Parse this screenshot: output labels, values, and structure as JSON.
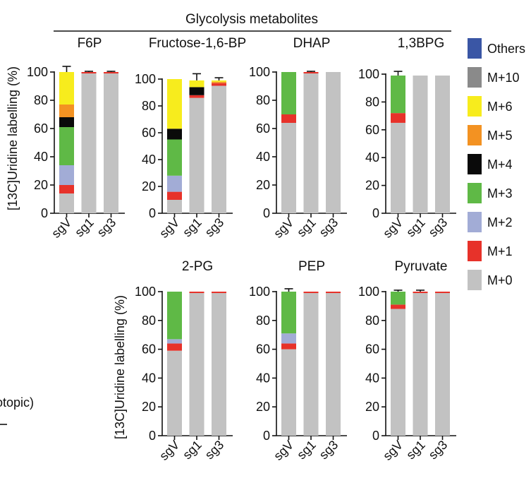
{
  "header": {
    "title": "Glycolysis metabolites"
  },
  "y_axis_label": "[13C]Uridine labelling (%)",
  "partial_text": {
    "otopic": "otopic)"
  },
  "chart_data": {
    "type": "bar",
    "stacked": true,
    "categories": [
      "sgV",
      "sg1",
      "sg3"
    ],
    "yticks": [
      0,
      20,
      40,
      60,
      80,
      100
    ],
    "legend": [
      {
        "name": "Others",
        "color": "#3a56a5"
      },
      {
        "name": "M+10",
        "color": "#8a8a8a"
      },
      {
        "name": "M+6",
        "color": "#f7ec1d"
      },
      {
        "name": "M+5",
        "color": "#f39222"
      },
      {
        "name": "M+4",
        "color": "#0a0a0a"
      },
      {
        "name": "M+3",
        "color": "#5fb946"
      },
      {
        "name": "M+2",
        "color": "#a2acd6"
      },
      {
        "name": "M+1",
        "color": "#e7322a"
      },
      {
        "name": "M+0",
        "color": "#c2c2c2"
      }
    ],
    "panels": [
      {
        "title": "F6P",
        "ylim": [
          0,
          100
        ],
        "bars": [
          {
            "category": "sgV",
            "stack": [
              {
                "iso": "M+0",
                "value": 14,
                "err": 0
              },
              {
                "iso": "M+1",
                "value": 6,
                "err": 2
              },
              {
                "iso": "M+2",
                "value": 14,
                "err": 0
              },
              {
                "iso": "M+3",
                "value": 27,
                "err": 0
              },
              {
                "iso": "M+4",
                "value": 7,
                "err": 0
              },
              {
                "iso": "M+5",
                "value": 9,
                "err": 0
              },
              {
                "iso": "M+6",
                "value": 23,
                "err": 4
              }
            ]
          },
          {
            "category": "sg1",
            "stack": [
              {
                "iso": "M+0",
                "value": 99,
                "err": 0
              },
              {
                "iso": "M+1",
                "value": 1,
                "err": 0.5
              }
            ]
          },
          {
            "category": "sg3",
            "stack": [
              {
                "iso": "M+0",
                "value": 99,
                "err": 0
              },
              {
                "iso": "M+1",
                "value": 1,
                "err": 0.5
              }
            ]
          }
        ]
      },
      {
        "title": "Fructose-1,6-BP",
        "ylim": [
          0,
          100
        ],
        "bars": [
          {
            "category": "sgV",
            "stack": [
              {
                "iso": "M+0",
                "value": 10,
                "err": 0
              },
              {
                "iso": "M+1",
                "value": 6,
                "err": 0
              },
              {
                "iso": "M+2",
                "value": 12,
                "err": 0
              },
              {
                "iso": "M+3",
                "value": 27,
                "err": 0
              },
              {
                "iso": "M+4",
                "value": 8,
                "err": 0
              },
              {
                "iso": "M+6",
                "value": 37,
                "err": 0
              }
            ]
          },
          {
            "category": "sg1",
            "stack": [
              {
                "iso": "M+0",
                "value": 86,
                "err": 0
              },
              {
                "iso": "M+1",
                "value": 2,
                "err": 0
              },
              {
                "iso": "M+4",
                "value": 6,
                "err": 0
              },
              {
                "iso": "M+6",
                "value": 5,
                "err": 5
              }
            ]
          },
          {
            "category": "sg3",
            "stack": [
              {
                "iso": "M+0",
                "value": 95,
                "err": 0
              },
              {
                "iso": "M+1",
                "value": 2,
                "err": 0
              },
              {
                "iso": "M+5",
                "value": 1,
                "err": 0
              },
              {
                "iso": "M+6",
                "value": 1,
                "err": 2
              }
            ]
          }
        ]
      },
      {
        "title": "DHAP",
        "ylim": [
          0,
          100
        ],
        "bars": [
          {
            "category": "sgV",
            "stack": [
              {
                "iso": "M+0",
                "value": 64,
                "err": 0
              },
              {
                "iso": "M+1",
                "value": 6,
                "err": 0
              },
              {
                "iso": "M+3",
                "value": 30,
                "err": 0
              }
            ]
          },
          {
            "category": "sg1",
            "stack": [
              {
                "iso": "M+0",
                "value": 99,
                "err": 0
              },
              {
                "iso": "M+1",
                "value": 1,
                "err": 0.5
              }
            ]
          },
          {
            "category": "sg3",
            "stack": [
              {
                "iso": "M+0",
                "value": 100,
                "err": 0
              }
            ]
          }
        ]
      },
      {
        "title": "1,3BPG",
        "ylim": [
          0,
          100
        ],
        "bars": [
          {
            "category": "sgV",
            "stack": [
              {
                "iso": "M+0",
                "value": 65,
                "err": 0
              },
              {
                "iso": "M+1",
                "value": 7,
                "err": 0
              },
              {
                "iso": "M+3",
                "value": 27,
                "err": 3
              }
            ]
          },
          {
            "category": "sg1",
            "stack": [
              {
                "iso": "M+0",
                "value": 99,
                "err": 0
              }
            ]
          },
          {
            "category": "sg3",
            "stack": [
              {
                "iso": "M+0",
                "value": 99,
                "err": 0
              }
            ]
          }
        ]
      },
      {
        "title": "2-PG",
        "ylim": [
          0,
          100
        ],
        "bars": [
          {
            "category": "sgV",
            "stack": [
              {
                "iso": "M+0",
                "value": 59,
                "err": 0
              },
              {
                "iso": "M+1",
                "value": 5,
                "err": 0
              },
              {
                "iso": "M+2",
                "value": 3,
                "err": 0
              },
              {
                "iso": "M+3",
                "value": 33,
                "err": 0
              }
            ]
          },
          {
            "category": "sg1",
            "stack": [
              {
                "iso": "M+0",
                "value": 99,
                "err": 0
              },
              {
                "iso": "M+1",
                "value": 1,
                "err": 0
              }
            ]
          },
          {
            "category": "sg3",
            "stack": [
              {
                "iso": "M+0",
                "value": 99,
                "err": 0
              },
              {
                "iso": "M+1",
                "value": 1,
                "err": 0
              }
            ]
          }
        ]
      },
      {
        "title": "PEP",
        "ylim": [
          0,
          100
        ],
        "bars": [
          {
            "category": "sgV",
            "stack": [
              {
                "iso": "M+0",
                "value": 60,
                "err": 0
              },
              {
                "iso": "M+1",
                "value": 4,
                "err": 0
              },
              {
                "iso": "M+2",
                "value": 7,
                "err": 0
              },
              {
                "iso": "M+3",
                "value": 29,
                "err": 2
              }
            ]
          },
          {
            "category": "sg1",
            "stack": [
              {
                "iso": "M+0",
                "value": 99,
                "err": 0
              },
              {
                "iso": "M+1",
                "value": 1,
                "err": 0
              }
            ]
          },
          {
            "category": "sg3",
            "stack": [
              {
                "iso": "M+0",
                "value": 99,
                "err": 0
              },
              {
                "iso": "M+1",
                "value": 1,
                "err": 0
              }
            ]
          }
        ]
      },
      {
        "title": "Pyruvate",
        "ylim": [
          0,
          100
        ],
        "bars": [
          {
            "category": "sgV",
            "stack": [
              {
                "iso": "M+0",
                "value": 88,
                "err": 0
              },
              {
                "iso": "M+1",
                "value": 3,
                "err": 0
              },
              {
                "iso": "M+3",
                "value": 9,
                "err": 1
              }
            ]
          },
          {
            "category": "sg1",
            "stack": [
              {
                "iso": "M+0",
                "value": 99,
                "err": 0
              },
              {
                "iso": "M+1",
                "value": 1,
                "err": 1
              }
            ]
          },
          {
            "category": "sg3",
            "stack": [
              {
                "iso": "M+0",
                "value": 99,
                "err": 0
              },
              {
                "iso": "M+1",
                "value": 1,
                "err": 0
              }
            ]
          }
        ]
      }
    ]
  }
}
